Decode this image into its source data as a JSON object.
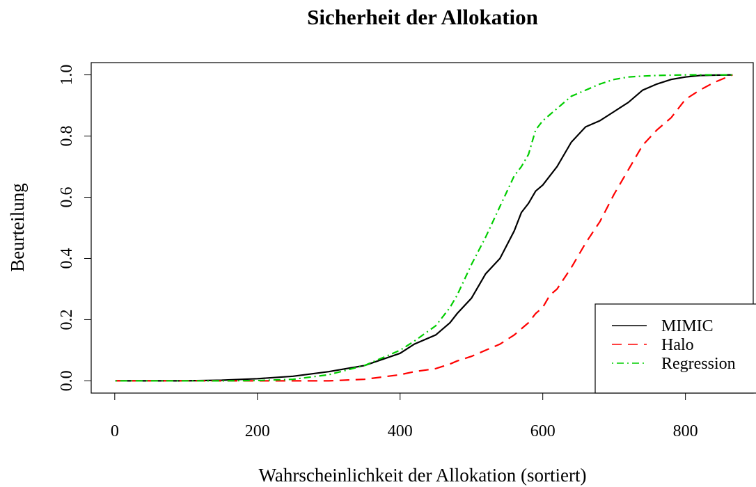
{
  "chart_data": {
    "type": "line",
    "title": "Sicherheit der Allokation",
    "xlabel": "Wahrscheinlichkeit der Allokation (sortiert)",
    "ylabel": "Beurteilung",
    "x": [
      1,
      50,
      100,
      150,
      200,
      250,
      300,
      350,
      400,
      420,
      450,
      470,
      480,
      500,
      520,
      540,
      560,
      570,
      580,
      590,
      600,
      610,
      620,
      640,
      660,
      680,
      700,
      720,
      740,
      760,
      780,
      800,
      820,
      840,
      866
    ],
    "series": [
      {
        "name": "MIMIC",
        "color": "#000000",
        "dash": "solid",
        "values": [
          0,
          0,
          0,
          0.002,
          0.007,
          0.015,
          0.03,
          0.05,
          0.09,
          0.12,
          0.15,
          0.19,
          0.22,
          0.27,
          0.35,
          0.4,
          0.49,
          0.55,
          0.58,
          0.62,
          0.64,
          0.67,
          0.7,
          0.78,
          0.83,
          0.85,
          0.88,
          0.91,
          0.95,
          0.97,
          0.985,
          0.993,
          0.998,
          0.999,
          1
        ]
      },
      {
        "name": "Halo",
        "color": "#ff0000",
        "dash": "dashed",
        "values": [
          0,
          0,
          0,
          0,
          0,
          0,
          0,
          0.005,
          0.02,
          0.03,
          0.04,
          0.055,
          0.065,
          0.08,
          0.1,
          0.12,
          0.15,
          0.17,
          0.19,
          0.22,
          0.24,
          0.28,
          0.3,
          0.37,
          0.45,
          0.52,
          0.61,
          0.69,
          0.77,
          0.82,
          0.86,
          0.92,
          0.95,
          0.975,
          1
        ]
      },
      {
        "name": "Regression",
        "color": "#00cd00",
        "dash": "dotdash",
        "values": [
          0,
          0,
          0,
          0,
          0.001,
          0.005,
          0.02,
          0.05,
          0.1,
          0.13,
          0.18,
          0.24,
          0.28,
          0.38,
          0.47,
          0.57,
          0.67,
          0.7,
          0.74,
          0.82,
          0.85,
          0.87,
          0.89,
          0.93,
          0.95,
          0.97,
          0.985,
          0.993,
          0.996,
          0.998,
          0.999,
          1,
          1,
          1,
          1
        ]
      }
    ],
    "xlim": [
      -33,
      895
    ],
    "ylim": [
      -0.04,
      1.04
    ],
    "xticks": [
      0,
      200,
      400,
      600,
      800
    ],
    "yticks": [
      {
        "value": 0,
        "label": "0.0"
      },
      {
        "value": 0.2,
        "label": "0.2"
      },
      {
        "value": 0.4,
        "label": "0.4"
      },
      {
        "value": 0.6,
        "label": "0.6"
      },
      {
        "value": 0.8,
        "label": "0.8"
      },
      {
        "value": 1,
        "label": "1.0"
      }
    ],
    "legend": "bottom-right"
  }
}
